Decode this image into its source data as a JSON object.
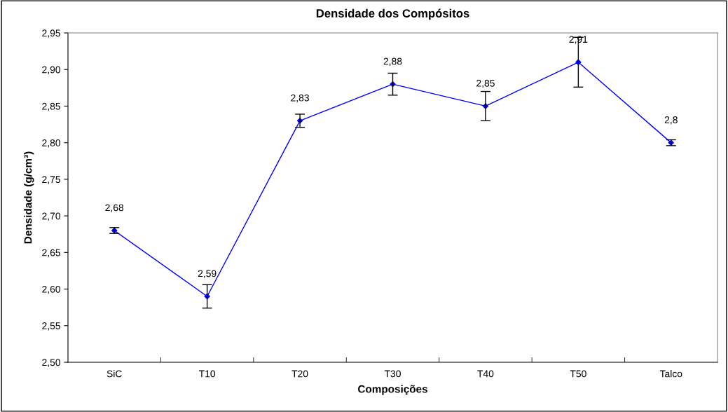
{
  "chart_data": {
    "type": "line",
    "title": "Densidade dos Compósitos",
    "xlabel": "Composições",
    "ylabel": "Densidade (g/cm³)",
    "categories": [
      "SiC",
      "T10",
      "T20",
      "T30",
      "T40",
      "T50",
      "Talco"
    ],
    "series": [
      {
        "color": "#0000ff",
        "values": [
          2.68,
          2.59,
          2.83,
          2.88,
          2.85,
          2.91,
          2.8
        ],
        "errors": [
          0.004,
          0.016,
          0.009,
          0.015,
          0.02,
          0.034,
          0.004
        ],
        "value_labels": [
          "2,68",
          "2,59",
          "2,83",
          "2,88",
          "2,85",
          "2,91",
          "2,8"
        ]
      }
    ],
    "ylim": [
      2.5,
      2.95
    ],
    "yticks": [
      {
        "value": 2.5,
        "label": "2,50"
      },
      {
        "value": 2.55,
        "label": "2,55"
      },
      {
        "value": 2.6,
        "label": "2,60"
      },
      {
        "value": 2.65,
        "label": "2,65"
      },
      {
        "value": 2.7,
        "label": "2,70"
      },
      {
        "value": 2.75,
        "label": "2,75"
      },
      {
        "value": 2.8,
        "label": "2,80"
      },
      {
        "value": 2.85,
        "label": "2,85"
      },
      {
        "value": 2.9,
        "label": "2,90"
      },
      {
        "value": 2.95,
        "label": "2,95"
      }
    ],
    "marker": "diamond",
    "line_style": "solid",
    "grid": false,
    "legend": false
  }
}
